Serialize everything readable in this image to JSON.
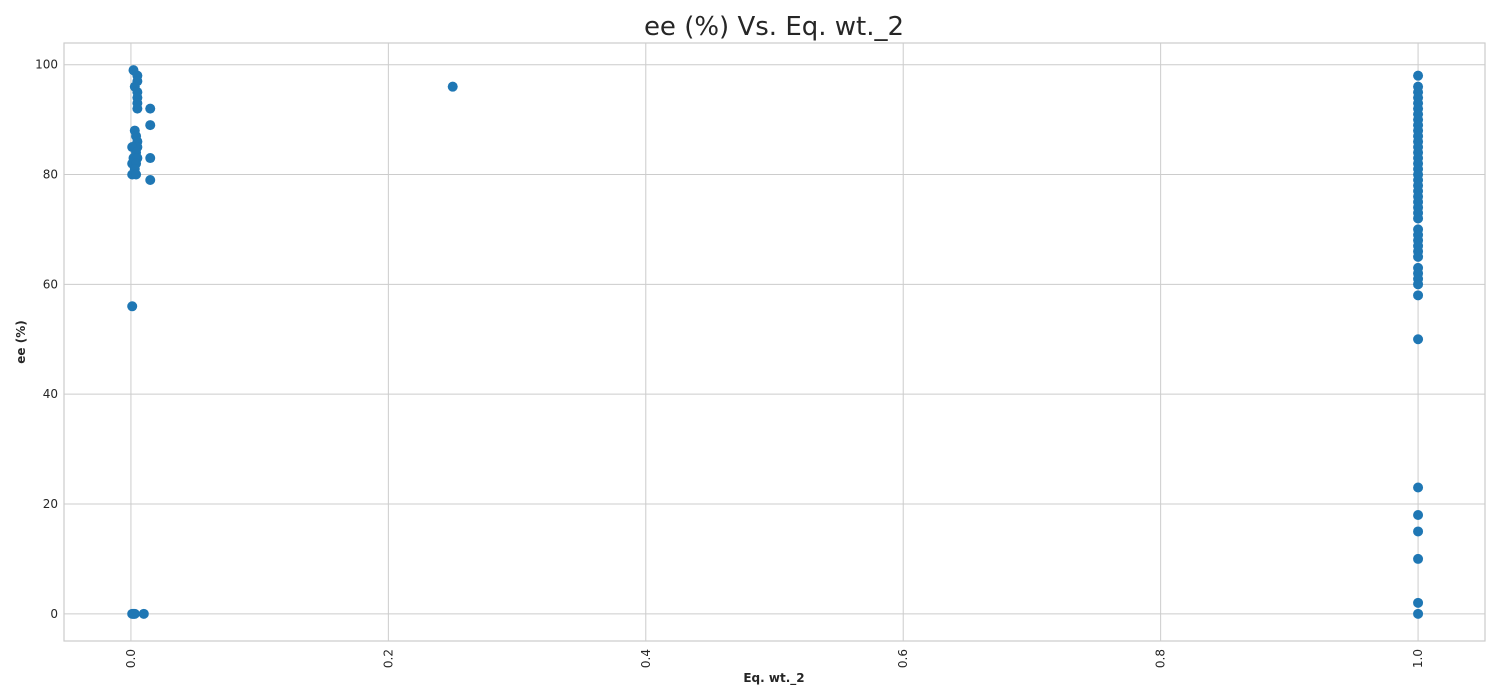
{
  "chart_data": {
    "type": "scatter",
    "title": "ee (%) Vs. Eq. wt._2",
    "xlabel": "Eq. wt._2",
    "ylabel": "ee (%)",
    "xlim": [
      -0.052,
      1.052
    ],
    "ylim": [
      -4.95,
      103.95
    ],
    "xticks": [
      0.0,
      0.2,
      0.4,
      0.6,
      0.8,
      1.0
    ],
    "xtick_labels": [
      "0.0",
      "0.2",
      "0.4",
      "0.6",
      "0.8",
      "1.0"
    ],
    "yticks": [
      0,
      20,
      40,
      60,
      80,
      100
    ],
    "ytick_labels": [
      "0",
      "20",
      "40",
      "60",
      "80",
      "100"
    ],
    "grid": true,
    "marker_color": "#1f77b4",
    "points": [
      [
        0.002,
        99
      ],
      [
        0.005,
        98
      ],
      [
        0.005,
        97
      ],
      [
        0.003,
        96
      ],
      [
        0.005,
        95
      ],
      [
        0.005,
        94
      ],
      [
        0.005,
        93
      ],
      [
        0.005,
        92
      ],
      [
        0.003,
        88
      ],
      [
        0.004,
        87
      ],
      [
        0.005,
        86
      ],
      [
        0.005,
        85
      ],
      [
        0.001,
        85
      ],
      [
        0.004,
        84
      ],
      [
        0.002,
        83
      ],
      [
        0.005,
        83
      ],
      [
        0.001,
        82
      ],
      [
        0.004,
        82
      ],
      [
        0.003,
        81
      ],
      [
        0.001,
        80
      ],
      [
        0.004,
        80
      ],
      [
        0.001,
        56
      ],
      [
        0.015,
        92
      ],
      [
        0.015,
        89
      ],
      [
        0.015,
        83
      ],
      [
        0.015,
        79
      ],
      [
        0.001,
        0
      ],
      [
        0.002,
        0
      ],
      [
        0.003,
        0
      ],
      [
        0.01,
        0
      ],
      [
        0.25,
        96
      ],
      [
        1.0,
        98
      ],
      [
        1.0,
        96
      ],
      [
        1.0,
        95
      ],
      [
        1.0,
        94
      ],
      [
        1.0,
        93
      ],
      [
        1.0,
        92
      ],
      [
        1.0,
        91
      ],
      [
        1.0,
        90
      ],
      [
        1.0,
        89
      ],
      [
        1.0,
        88
      ],
      [
        1.0,
        87
      ],
      [
        1.0,
        86
      ],
      [
        1.0,
        85
      ],
      [
        1.0,
        84
      ],
      [
        1.0,
        83
      ],
      [
        1.0,
        82
      ],
      [
        1.0,
        81
      ],
      [
        1.0,
        80
      ],
      [
        1.0,
        79
      ],
      [
        1.0,
        78
      ],
      [
        1.0,
        77
      ],
      [
        1.0,
        76
      ],
      [
        1.0,
        75
      ],
      [
        1.0,
        74
      ],
      [
        1.0,
        73
      ],
      [
        1.0,
        72
      ],
      [
        1.0,
        70
      ],
      [
        1.0,
        69
      ],
      [
        1.0,
        68
      ],
      [
        1.0,
        67
      ],
      [
        1.0,
        66
      ],
      [
        1.0,
        65
      ],
      [
        1.0,
        63
      ],
      [
        1.0,
        62
      ],
      [
        1.0,
        61
      ],
      [
        1.0,
        60
      ],
      [
        1.0,
        58
      ],
      [
        1.0,
        50
      ],
      [
        1.0,
        23
      ],
      [
        1.0,
        18
      ],
      [
        1.0,
        15
      ],
      [
        1.0,
        10
      ],
      [
        1.0,
        2
      ],
      [
        1.0,
        0
      ]
    ]
  }
}
